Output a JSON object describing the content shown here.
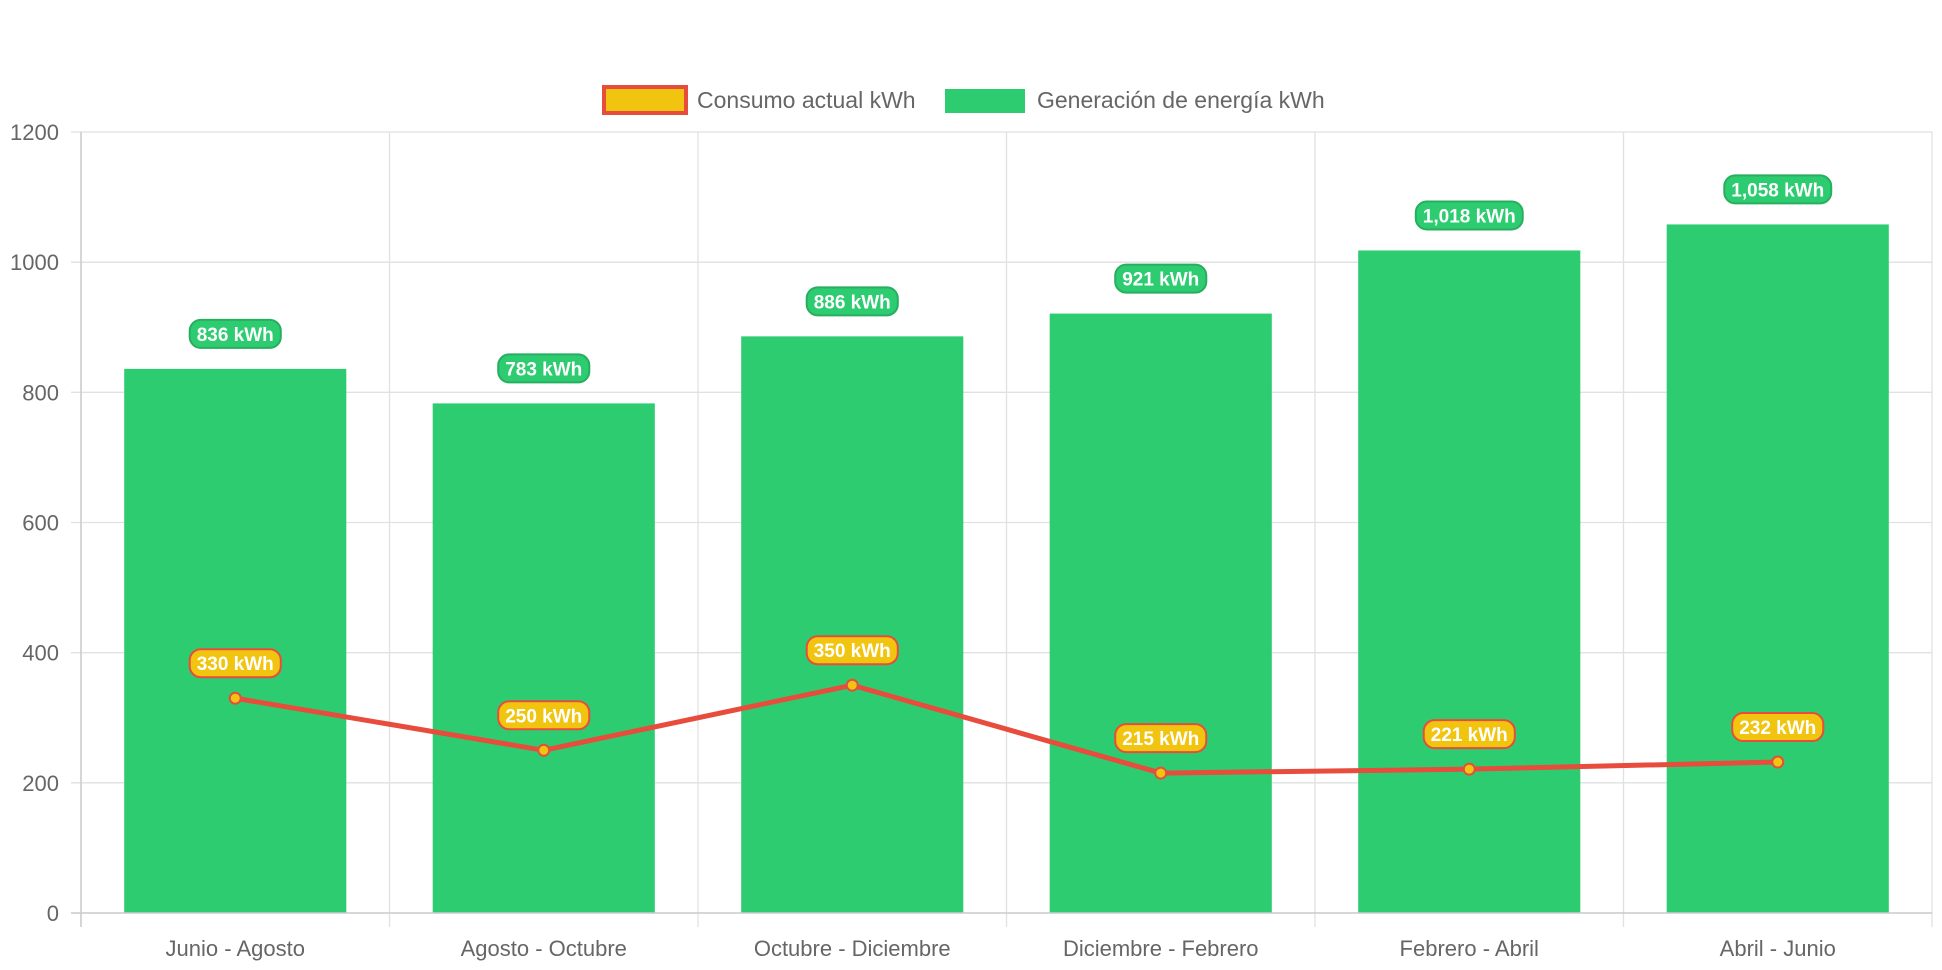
{
  "chart_data": {
    "type": "bar",
    "title": "",
    "xlabel": "",
    "ylabel": "",
    "ylim": [
      0,
      1200
    ],
    "yticks": [
      0,
      200,
      400,
      600,
      800,
      1000,
      1200
    ],
    "grid": true,
    "legend_position": "top-center",
    "categories": [
      "Junio - Agosto",
      "Agosto - Octubre",
      "Octubre - Diciembre",
      "Diciembre - Febrero",
      "Febrero - Abril",
      "Abril - Junio"
    ],
    "series": [
      {
        "name": "Consumo actual kWh",
        "type": "line",
        "values": [
          330,
          250,
          350,
          215,
          221,
          232
        ],
        "labels": [
          "330 kWh",
          "250 kWh",
          "350 kWh",
          "215 kWh",
          "221 kWh",
          "232 kWh"
        ],
        "line_color": "#e74c3c",
        "fill_color": "#f1c40f"
      },
      {
        "name": "Generación de energía kWh",
        "type": "bar",
        "values": [
          836,
          783,
          886,
          921,
          1018,
          1058
        ],
        "labels": [
          "836 kWh",
          "783 kWh",
          "886 kWh",
          "921 kWh",
          "1,018 kWh",
          "1,058 kWh"
        ],
        "color": "#2ecc71",
        "border_color": "#27ae60"
      }
    ]
  }
}
